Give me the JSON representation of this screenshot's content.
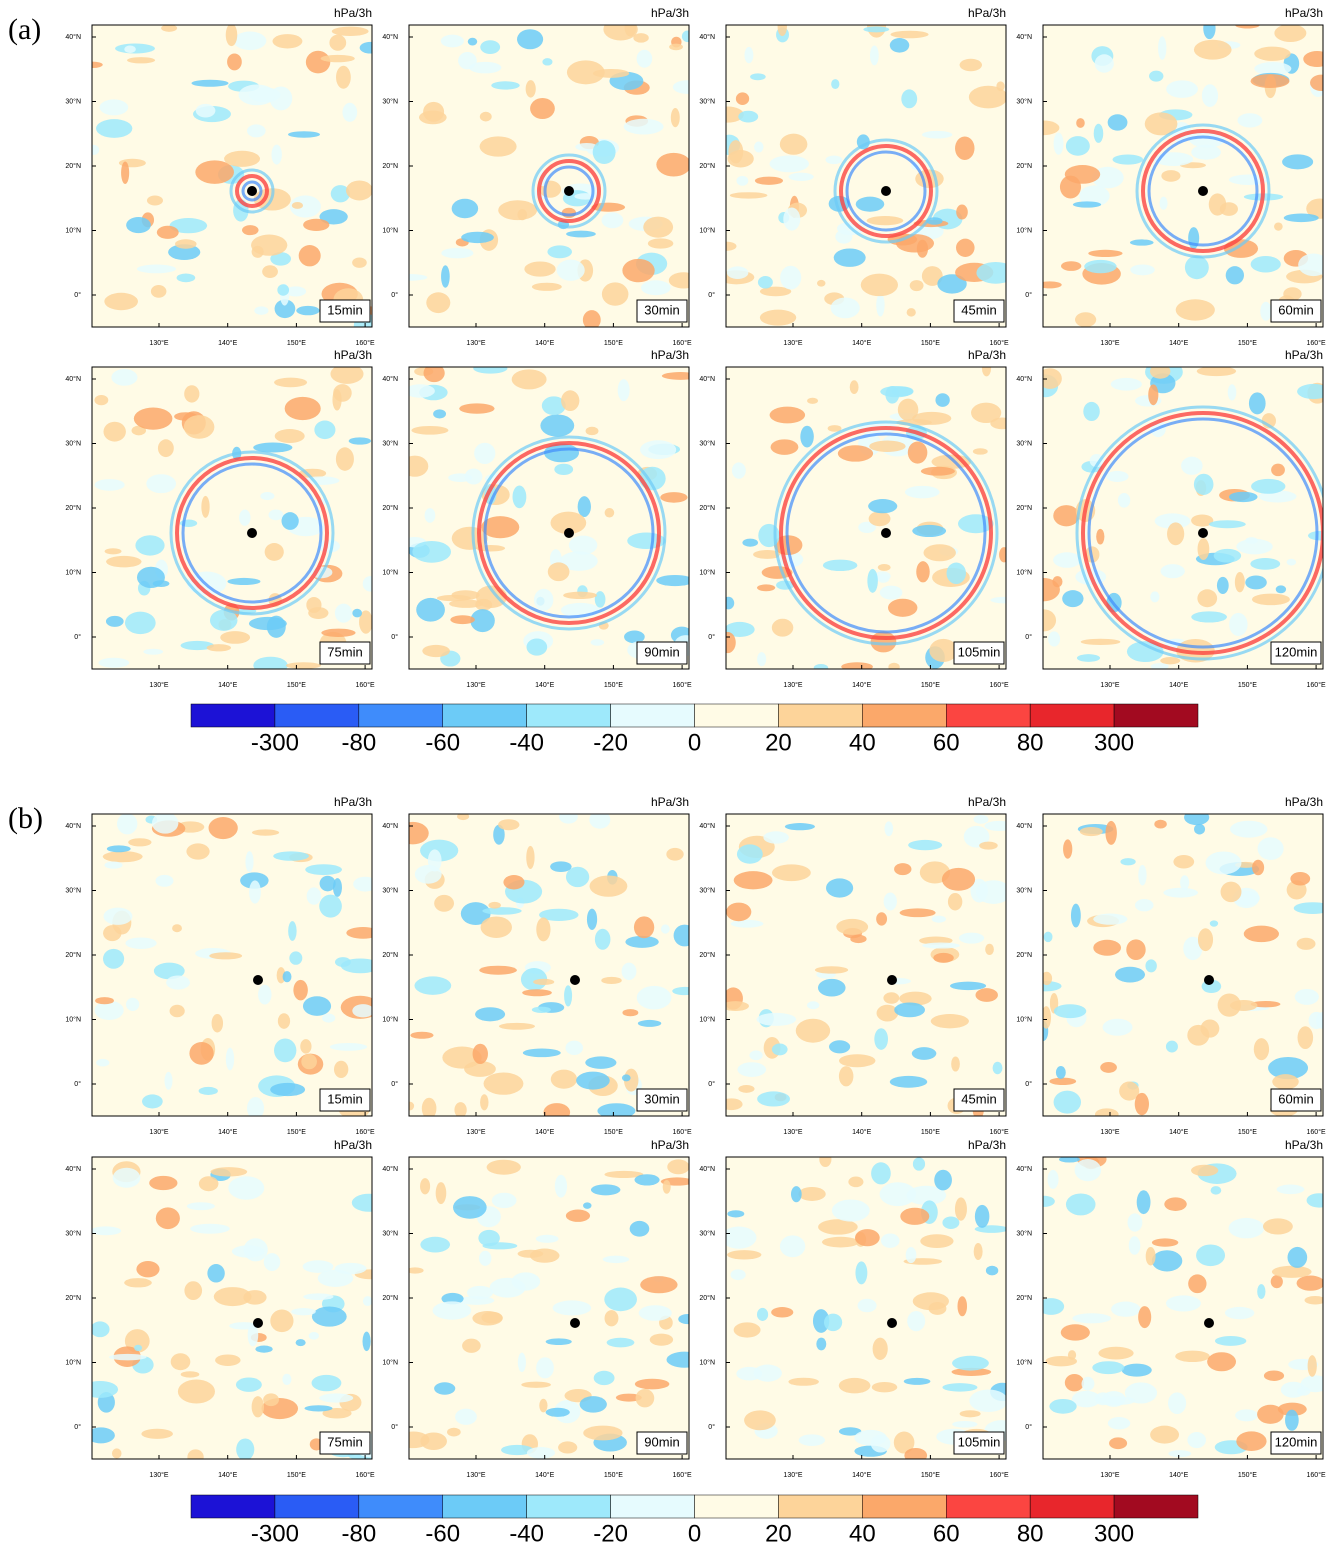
{
  "figures": [
    {
      "label": "(a)",
      "panels": [
        {
          "unit": "hPa/3h",
          "time": "15min"
        },
        {
          "unit": "hPa/3h",
          "time": "30min"
        },
        {
          "unit": "hPa/3h",
          "time": "45min"
        },
        {
          "unit": "hPa/3h",
          "time": "60min"
        },
        {
          "unit": "hPa/3h",
          "time": "75min"
        },
        {
          "unit": "hPa/3h",
          "time": "90min"
        },
        {
          "unit": "hPa/3h",
          "time": "105min"
        },
        {
          "unit": "hPa/3h",
          "time": "120min"
        }
      ],
      "colorbar": {
        "levels": [
          -300,
          -80,
          -60,
          -40,
          -20,
          0,
          20,
          40,
          60,
          80,
          300
        ],
        "colors": [
          "#1c12d6",
          "#2a5cf5",
          "#3f8cfb",
          "#6ccbf7",
          "#9ee9fb",
          "#e6fbfe",
          "#fffbe6",
          "#fdd49a",
          "#fba86a",
          "#fb4541",
          "#e8262c",
          "#a20a20"
        ]
      }
    },
    {
      "label": "(b)",
      "panels": [
        {
          "unit": "hPa/3h",
          "time": "15min"
        },
        {
          "unit": "hPa/3h",
          "time": "30min"
        },
        {
          "unit": "hPa/3h",
          "time": "45min"
        },
        {
          "unit": "hPa/3h",
          "time": "60min"
        },
        {
          "unit": "hPa/3h",
          "time": "75min"
        },
        {
          "unit": "hPa/3h",
          "time": "90min"
        },
        {
          "unit": "hPa/3h",
          "time": "105min"
        },
        {
          "unit": "hPa/3h",
          "time": "120min"
        }
      ],
      "colorbar": {
        "levels": [
          -300,
          -80,
          -60,
          -40,
          -20,
          0,
          20,
          40,
          60,
          80,
          300
        ],
        "colors": [
          "#1c12d6",
          "#2a5cf5",
          "#3f8cfb",
          "#6ccbf7",
          "#9ee9fb",
          "#e6fbfe",
          "#fffbe6",
          "#fdd49a",
          "#fba86a",
          "#fb4541",
          "#e8262c",
          "#a20a20"
        ]
      }
    }
  ],
  "lat_labels": [
    "40°N",
    "30°N",
    "20°N",
    "10°N",
    "0°"
  ],
  "lon_labels": [
    "130°E",
    "140°E",
    "150°E",
    "160°E"
  ]
}
